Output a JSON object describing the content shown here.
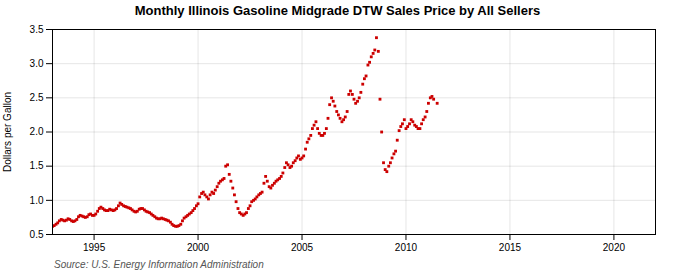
{
  "chart_data": {
    "type": "scatter",
    "title": "Monthly Illinois Gasoline Midgrade DTW Sales Price by All Sellers",
    "ylabel": "Dollars per Gallon",
    "source": "Source: U.S. Energy Information Administration",
    "color": "#cc0000",
    "marker": "square",
    "grid": true,
    "xlim": [
      1993.0,
      2022.0
    ],
    "ylim": [
      0.5,
      3.5
    ],
    "xticks": [
      1995,
      2000,
      2005,
      2010,
      2015,
      2020
    ],
    "yticks": [
      0.5,
      {
        "value": 1.0,
        "label": "1.0"
      },
      1.5,
      {
        "value": 2.0,
        "label": "2.0"
      },
      2.5,
      {
        "value": 3.0,
        "label": "3.0"
      },
      3.5
    ],
    "x": [
      1993.0,
      1993.08,
      1993.17,
      1993.25,
      1993.33,
      1993.42,
      1993.5,
      1993.58,
      1993.67,
      1993.75,
      1993.83,
      1993.92,
      1994.0,
      1994.08,
      1994.17,
      1994.25,
      1994.33,
      1994.42,
      1994.5,
      1994.58,
      1994.67,
      1994.75,
      1994.83,
      1994.92,
      1995.0,
      1995.08,
      1995.17,
      1995.25,
      1995.33,
      1995.42,
      1995.5,
      1995.58,
      1995.67,
      1995.75,
      1995.83,
      1995.92,
      1996.0,
      1996.08,
      1996.17,
      1996.25,
      1996.33,
      1996.42,
      1996.5,
      1996.58,
      1996.67,
      1996.75,
      1996.83,
      1996.92,
      1997.0,
      1997.08,
      1997.17,
      1997.25,
      1997.33,
      1997.42,
      1997.5,
      1997.58,
      1997.67,
      1997.75,
      1997.83,
      1997.92,
      1998.0,
      1998.08,
      1998.17,
      1998.25,
      1998.33,
      1998.42,
      1998.5,
      1998.58,
      1998.67,
      1998.75,
      1998.83,
      1998.92,
      1999.0,
      1999.08,
      1999.17,
      1999.25,
      1999.33,
      1999.42,
      1999.5,
      1999.58,
      1999.67,
      1999.75,
      1999.83,
      1999.92,
      2000.0,
      2000.08,
      2000.17,
      2000.25,
      2000.33,
      2000.42,
      2000.5,
      2000.58,
      2000.67,
      2000.75,
      2000.83,
      2000.92,
      2001.0,
      2001.08,
      2001.17,
      2001.25,
      2001.33,
      2001.42,
      2001.5,
      2001.58,
      2001.67,
      2001.75,
      2001.83,
      2001.92,
      2002.0,
      2002.08,
      2002.17,
      2002.25,
      2002.33,
      2002.42,
      2002.5,
      2002.58,
      2002.67,
      2002.75,
      2002.83,
      2002.92,
      2003.0,
      2003.08,
      2003.17,
      2003.25,
      2003.33,
      2003.42,
      2003.5,
      2003.58,
      2003.67,
      2003.75,
      2003.83,
      2003.92,
      2004.0,
      2004.08,
      2004.17,
      2004.25,
      2004.33,
      2004.42,
      2004.5,
      2004.58,
      2004.67,
      2004.75,
      2004.83,
      2004.92,
      2005.0,
      2005.08,
      2005.17,
      2005.25,
      2005.33,
      2005.42,
      2005.5,
      2005.58,
      2005.67,
      2005.75,
      2005.83,
      2005.92,
      2006.0,
      2006.08,
      2006.17,
      2006.25,
      2006.33,
      2006.42,
      2006.5,
      2006.58,
      2006.67,
      2006.75,
      2006.83,
      2006.92,
      2007.0,
      2007.08,
      2007.17,
      2007.25,
      2007.33,
      2007.42,
      2007.5,
      2007.58,
      2007.67,
      2007.75,
      2007.83,
      2007.92,
      2008.0,
      2008.08,
      2008.17,
      2008.25,
      2008.33,
      2008.42,
      2008.5,
      2008.58,
      2008.67,
      2008.75,
      2008.83,
      2008.92,
      2009.0,
      2009.08,
      2009.17,
      2009.25,
      2009.33,
      2009.42,
      2009.5,
      2009.58,
      2009.67,
      2009.75,
      2009.83,
      2009.92,
      2010.0,
      2010.08,
      2010.17,
      2010.25,
      2010.33,
      2010.42,
      2010.5,
      2010.58,
      2010.67,
      2010.75,
      2010.83,
      2010.92,
      2011.0,
      2011.08,
      2011.17,
      2011.25,
      2011.33,
      2011.5
    ],
    "values": [
      0.62,
      0.63,
      0.65,
      0.67,
      0.7,
      0.72,
      0.71,
      0.7,
      0.71,
      0.73,
      0.72,
      0.7,
      0.69,
      0.7,
      0.72,
      0.76,
      0.78,
      0.77,
      0.76,
      0.75,
      0.76,
      0.79,
      0.8,
      0.78,
      0.78,
      0.8,
      0.84,
      0.88,
      0.9,
      0.88,
      0.86,
      0.85,
      0.85,
      0.87,
      0.86,
      0.85,
      0.86,
      0.88,
      0.92,
      0.96,
      0.94,
      0.92,
      0.91,
      0.9,
      0.89,
      0.88,
      0.86,
      0.84,
      0.83,
      0.84,
      0.87,
      0.88,
      0.88,
      0.86,
      0.84,
      0.83,
      0.82,
      0.8,
      0.78,
      0.76,
      0.74,
      0.73,
      0.73,
      0.74,
      0.73,
      0.72,
      0.71,
      0.7,
      0.68,
      0.65,
      0.63,
      0.62,
      0.62,
      0.63,
      0.65,
      0.7,
      0.74,
      0.76,
      0.78,
      0.8,
      0.82,
      0.85,
      0.88,
      0.92,
      0.95,
      1.05,
      1.1,
      1.12,
      1.08,
      1.05,
      1.02,
      1.08,
      1.12,
      1.1,
      1.15,
      1.2,
      1.25,
      1.28,
      1.3,
      1.32,
      1.5,
      1.52,
      1.38,
      1.28,
      1.18,
      1.08,
      0.98,
      0.88,
      0.82,
      0.8,
      0.78,
      0.8,
      0.82,
      0.88,
      0.92,
      0.98,
      1.0,
      1.02,
      1.05,
      1.08,
      1.1,
      1.12,
      1.25,
      1.35,
      1.28,
      1.2,
      1.18,
      1.22,
      1.25,
      1.28,
      1.3,
      1.32,
      1.35,
      1.4,
      1.48,
      1.55,
      1.52,
      1.48,
      1.5,
      1.55,
      1.58,
      1.62,
      1.65,
      1.6,
      1.62,
      1.65,
      1.75,
      1.85,
      1.9,
      1.95,
      2.05,
      2.1,
      2.15,
      2.05,
      1.98,
      1.95,
      1.95,
      1.98,
      2.05,
      2.2,
      2.4,
      2.5,
      2.45,
      2.38,
      2.3,
      2.25,
      2.2,
      2.15,
      2.18,
      2.22,
      2.3,
      2.55,
      2.6,
      2.55,
      2.48,
      2.42,
      2.45,
      2.5,
      2.58,
      2.7,
      2.78,
      2.82,
      2.98,
      3.02,
      3.1,
      3.15,
      3.2,
      3.38,
      3.18,
      2.48,
      2.0,
      1.55,
      1.45,
      1.42,
      1.5,
      1.55,
      1.62,
      1.68,
      1.72,
      1.88,
      2.02,
      2.08,
      2.12,
      2.18,
      2.05,
      2.08,
      2.12,
      2.18,
      2.15,
      2.1,
      2.08,
      2.05,
      2.05,
      2.12,
      2.18,
      2.22,
      2.3,
      2.42,
      2.5,
      2.52,
      2.48,
      2.42
    ]
  }
}
